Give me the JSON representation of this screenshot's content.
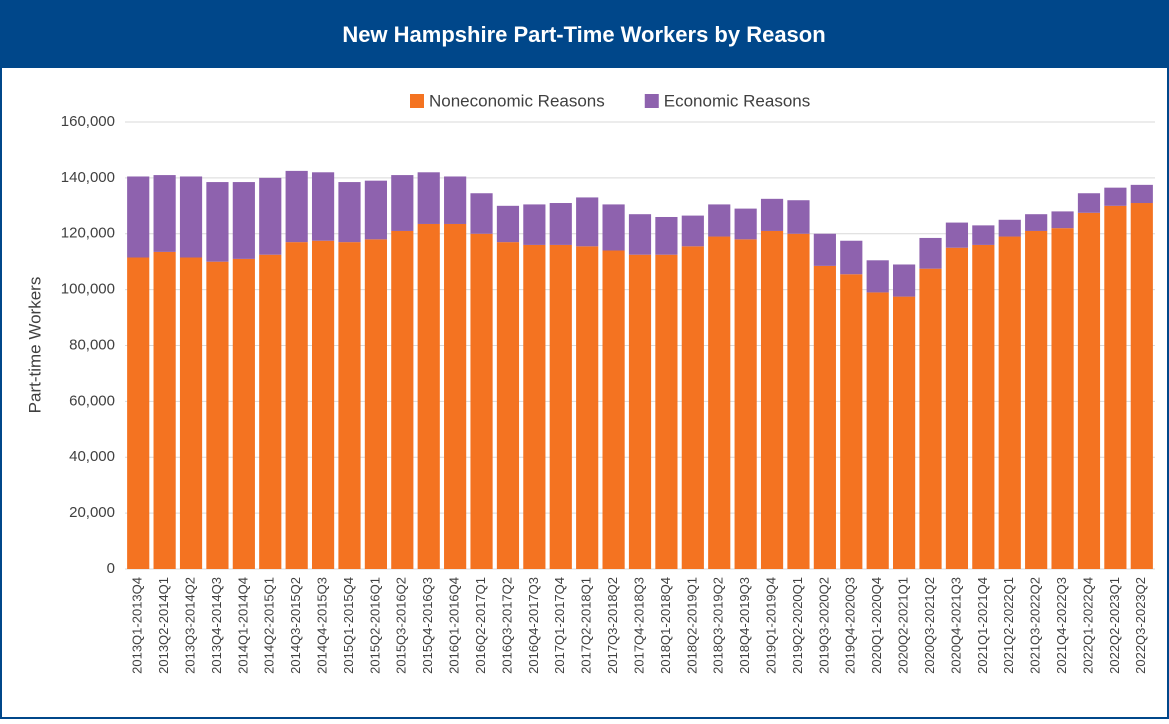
{
  "chart_data": {
    "type": "stacked_bar",
    "title": "New Hampshire Part-Time Workers by Reason",
    "y_label": "Part-time Workers",
    "legend": "top",
    "grid": true,
    "categories": [
      "2013Q1-2013Q4",
      "2013Q2-2014Q1",
      "2013Q3-2014Q2",
      "2013Q4-2014Q3",
      "2014Q1-2014Q4",
      "2014Q2-2015Q1",
      "2014Q3-2015Q2",
      "2014Q4-2015Q3",
      "2015Q1-2015Q4",
      "2015Q2-2016Q1",
      "2015Q3-2016Q2",
      "2015Q4-2016Q3",
      "2016Q1-2016Q4",
      "2016Q2-2017Q1",
      "2016Q3-2017Q2",
      "2016Q4-2017Q3",
      "2017Q1-2017Q4",
      "2017Q2-2018Q1",
      "2017Q3-2018Q2",
      "2017Q4-2018Q3",
      "2018Q1-2018Q4",
      "2018Q2-2019Q1",
      "2018Q3-2019Q2",
      "2018Q4-2019Q3",
      "2019Q1-2019Q4",
      "2019Q2-2020Q1",
      "2019Q3-2020Q2",
      "2019Q4-2020Q3",
      "2020Q1-2020Q4",
      "2020Q2-2021Q1",
      "2020Q3-2021Q2",
      "2020Q4-2021Q3",
      "2021Q1-2021Q4",
      "2021Q2-2022Q1",
      "2021Q3-2022Q2",
      "2021Q4-2022Q3",
      "2022Q1-2022Q4",
      "2022Q2-2023Q1",
      "2022Q3-2023Q2"
    ],
    "series": [
      {
        "name": "Noneconomic Reasons",
        "color": "#f47321",
        "values": [
          111500,
          113500,
          111500,
          110000,
          111000,
          112500,
          117000,
          117500,
          117000,
          118000,
          121000,
          123500,
          123500,
          120000,
          117000,
          116000,
          116000,
          115500,
          114000,
          112500,
          112500,
          115500,
          119000,
          118000,
          121000,
          120000,
          108500,
          105500,
          99000,
          97500,
          107500,
          115000,
          116000,
          119000,
          121000,
          122000,
          127500,
          130000,
          131000
        ]
      },
      {
        "name": "Economic Reasons",
        "color": "#8e62ae",
        "values": [
          29000,
          27500,
          29000,
          28500,
          27500,
          27500,
          25500,
          24500,
          21500,
          21000,
          20000,
          18500,
          17000,
          14500,
          13000,
          14500,
          15000,
          17500,
          16500,
          14500,
          13500,
          11000,
          11500,
          11000,
          11500,
          12000,
          11500,
          12000,
          11500,
          11500,
          11000,
          9000,
          7000,
          6000,
          6000,
          6000,
          7000,
          6500,
          6500
        ]
      }
    ],
    "ylim": [
      0,
      160000
    ],
    "yticks": [
      0,
      {
        "value": 20000,
        "label": "20,000"
      },
      {
        "value": 40000,
        "label": "40,000"
      },
      {
        "value": 60000,
        "label": "60,000"
      },
      {
        "value": 80000,
        "label": "80,000"
      },
      {
        "value": 100000,
        "label": "100,000"
      },
      {
        "value": 120000,
        "label": "120,000"
      },
      {
        "value": 140000,
        "label": "140,000"
      },
      {
        "value": 160000,
        "label": "160,000"
      }
    ]
  }
}
